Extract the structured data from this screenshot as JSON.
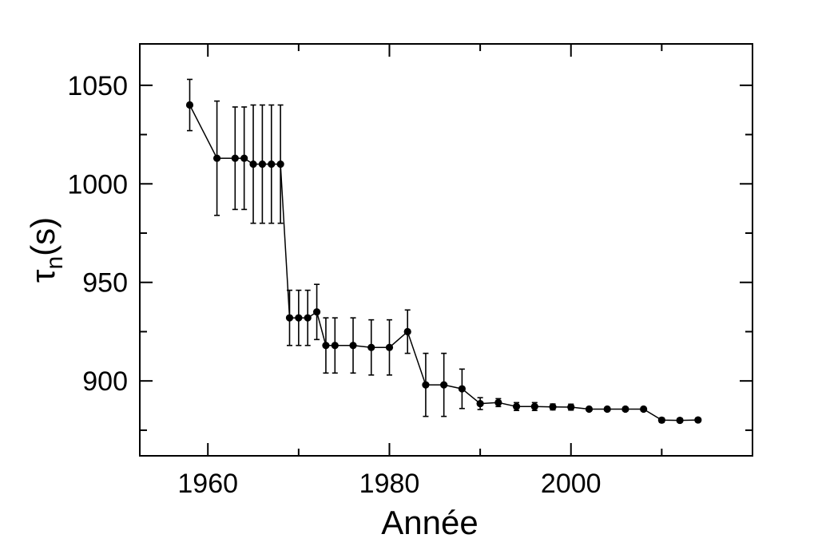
{
  "chart_data": {
    "type": "scatter",
    "title": "",
    "xlabel": "Année",
    "ylabel_symbol": "τ",
    "ylabel_subscript": "n",
    "ylabel_unit": "(s)",
    "xlim": [
      1952.5,
      2020
    ],
    "ylim": [
      862,
      1071
    ],
    "x_ticks": [
      "1960",
      "1980",
      "2000"
    ],
    "y_ticks": [
      "900",
      "950",
      "1000",
      "1050"
    ],
    "grid": false,
    "series": [
      {
        "connected": true,
        "points": [
          {
            "x": 1958,
            "y": 1040,
            "err": 13
          },
          {
            "x": 1961,
            "y": 1013,
            "err": 29
          },
          {
            "x": 1963,
            "y": 1013,
            "err": 26
          },
          {
            "x": 1964,
            "y": 1013,
            "err": 26
          },
          {
            "x": 1965,
            "y": 1010,
            "err": 30
          },
          {
            "x": 1966,
            "y": 1010,
            "err": 30
          },
          {
            "x": 1967,
            "y": 1010,
            "err": 30
          },
          {
            "x": 1968,
            "y": 1010,
            "err": 30
          },
          {
            "x": 1969,
            "y": 932,
            "err": 14
          },
          {
            "x": 1970,
            "y": 932,
            "err": 14
          },
          {
            "x": 1971,
            "y": 932,
            "err": 14
          },
          {
            "x": 1972,
            "y": 935,
            "err": 14
          },
          {
            "x": 1973,
            "y": 918,
            "err": 14
          },
          {
            "x": 1974,
            "y": 918,
            "err": 14
          },
          {
            "x": 1976,
            "y": 918,
            "err": 14
          },
          {
            "x": 1978,
            "y": 917,
            "err": 14
          },
          {
            "x": 1980,
            "y": 917,
            "err": 14
          },
          {
            "x": 1982,
            "y": 925,
            "err": 11
          },
          {
            "x": 1984,
            "y": 898,
            "err": 16
          },
          {
            "x": 1986,
            "y": 898,
            "err": 16
          },
          {
            "x": 1988,
            "y": 896,
            "err": 10
          },
          {
            "x": 1990,
            "y": 888.5,
            "err": 3
          },
          {
            "x": 1992,
            "y": 889,
            "err": 2
          },
          {
            "x": 1994,
            "y": 887,
            "err": 2
          },
          {
            "x": 1996,
            "y": 887,
            "err": 2
          },
          {
            "x": 1998,
            "y": 886.8,
            "err": 1.5
          },
          {
            "x": 2000,
            "y": 886.7,
            "err": 1.5
          },
          {
            "x": 2002,
            "y": 885.7,
            "err": 0.8
          },
          {
            "x": 2004,
            "y": 885.7,
            "err": 0.8
          },
          {
            "x": 2006,
            "y": 885.7,
            "err": 0.8
          },
          {
            "x": 2008,
            "y": 885.7,
            "err": 0.8
          },
          {
            "x": 2010,
            "y": 880.1,
            "err": 1.1
          },
          {
            "x": 2012,
            "y": 880.0,
            "err": 0.9
          },
          {
            "x": 2014,
            "y": 880.2,
            "err": 1.0
          }
        ]
      }
    ],
    "colors": {
      "line": "#000000",
      "marker": "#000000"
    }
  }
}
